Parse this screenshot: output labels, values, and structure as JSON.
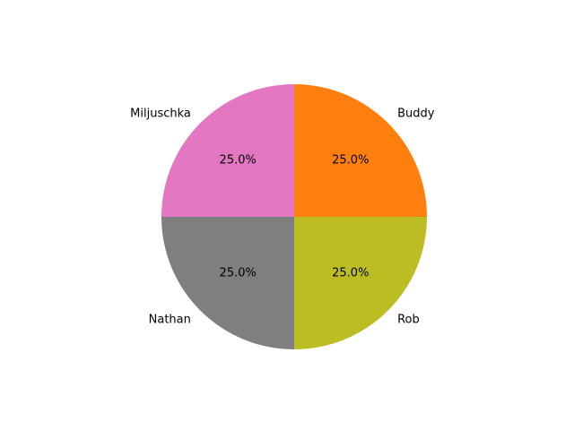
{
  "chart_data": {
    "type": "pie",
    "title": "",
    "categories": [
      "Buddy",
      "Rob",
      "Nathan",
      "Miljuschka"
    ],
    "values": [
      25.0,
      25.0,
      25.0,
      25.0
    ],
    "percent_labels": [
      "25.0%",
      "25.0%",
      "25.0%",
      "25.0%"
    ],
    "colors": [
      "#ff7f0e",
      "#bcbd22",
      "#7f7f7f",
      "#e377c2"
    ],
    "start_angle_deg": 90,
    "direction": "clockwise",
    "legend": "none"
  }
}
